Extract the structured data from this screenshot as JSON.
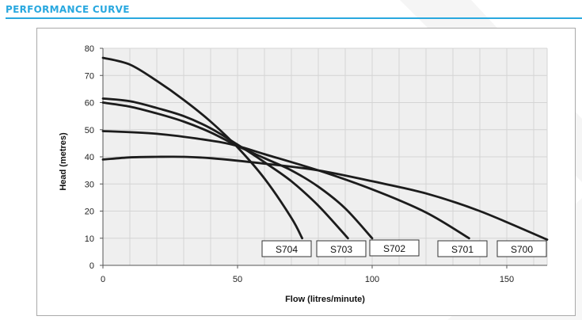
{
  "header": {
    "title": "PERFORMANCE CURVE"
  },
  "colors": {
    "accent": "#29a8df",
    "grid": "#d4d4d4",
    "plot_bg": "#efefef",
    "curve": "#1c1c1c"
  },
  "chart_data": {
    "type": "line",
    "title": "",
    "xlabel": "Flow (litres/minute)",
    "ylabel": "Head (metres)",
    "xlim": [
      0,
      165
    ],
    "ylim": [
      0,
      80
    ],
    "x_ticks": [
      0,
      50,
      100,
      150
    ],
    "y_ticks": [
      0,
      10,
      20,
      30,
      40,
      50,
      60,
      70,
      80
    ],
    "grid": true,
    "series": [
      {
        "name": "S704",
        "x": [
          0,
          10,
          20,
          30,
          40,
          50,
          60,
          70,
          74
        ],
        "y": [
          76.5,
          74,
          68,
          61,
          53,
          43.5,
          32,
          17.5,
          10
        ]
      },
      {
        "name": "S703",
        "x": [
          0,
          10,
          20,
          30,
          40,
          50,
          60,
          70,
          80,
          91
        ],
        "y": [
          61.5,
          60.5,
          58,
          55,
          50.5,
          44.5,
          38,
          31,
          22,
          10
        ]
      },
      {
        "name": "S702",
        "x": [
          0,
          10,
          20,
          30,
          40,
          50,
          60,
          70,
          80,
          90,
          100
        ],
        "y": [
          60,
          58.5,
          56,
          53,
          49,
          44,
          39.5,
          35,
          29,
          21,
          10
        ]
      },
      {
        "name": "S701",
        "x": [
          0,
          20,
          40,
          50,
          60,
          80,
          100,
          120,
          136
        ],
        "y": [
          49.5,
          48.5,
          46,
          44,
          41,
          35,
          28,
          19.5,
          10
        ]
      },
      {
        "name": "S700",
        "x": [
          0,
          10,
          20,
          30,
          40,
          60,
          80,
          100,
          120,
          140,
          165
        ],
        "y": [
          39,
          39.8,
          40,
          40,
          39.5,
          37.5,
          35,
          31,
          26.5,
          20,
          9.5
        ]
      }
    ],
    "labels": [
      {
        "series": "S704",
        "text": "S704"
      },
      {
        "series": "S703",
        "text": "S703"
      },
      {
        "series": "S702",
        "text": "S702"
      },
      {
        "series": "S701",
        "text": "S701"
      },
      {
        "series": "S700",
        "text": "S700"
      }
    ]
  }
}
